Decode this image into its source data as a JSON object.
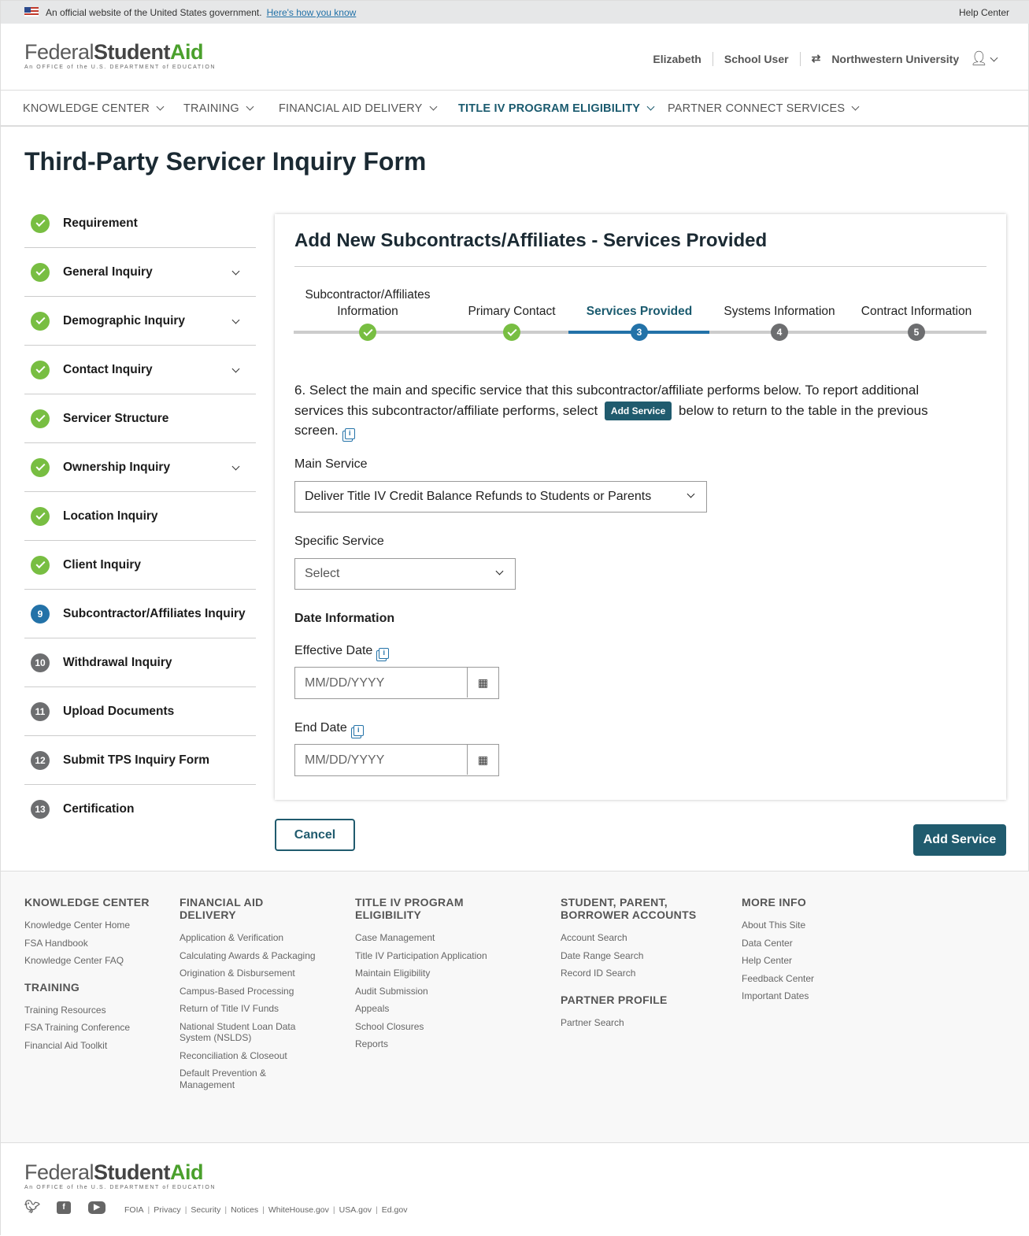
{
  "gov_banner": {
    "text": "An official website of the United States government.",
    "link": "Here's how you know",
    "help": "Help Center"
  },
  "logo": {
    "federal": "Federal",
    "student": "Student",
    "aid": "Aid",
    "sub": "An OFFICE of the U.S. DEPARTMENT of EDUCATION"
  },
  "header": {
    "user": "Elizabeth",
    "role": "School User",
    "school": "Northwestern University",
    "switch_icon": "swap-icon",
    "user_icon": "user-icon"
  },
  "nav": [
    {
      "label": "KNOWLEDGE CENTER"
    },
    {
      "label": "TRAINING"
    },
    {
      "label": "FINANCIAL AID DELIVERY"
    },
    {
      "label": "TITLE IV PROGRAM ELIGIBILITY",
      "active": true
    },
    {
      "label": "PARTNER CONNECT SERVICES"
    }
  ],
  "page_title": "Third-Party Servicer Inquiry Form",
  "sidebar": {
    "items": [
      {
        "label": "Requirement",
        "status": "done",
        "expand": false
      },
      {
        "label": "General Inquiry",
        "status": "done",
        "expand": true
      },
      {
        "label": "Demographic Inquiry",
        "status": "done",
        "expand": true
      },
      {
        "label": "Contact Inquiry",
        "status": "done",
        "expand": true
      },
      {
        "label": "Servicer Structure",
        "status": "done",
        "expand": false
      },
      {
        "label": "Ownership Inquiry",
        "status": "done",
        "expand": true
      },
      {
        "label": "Location Inquiry",
        "status": "done",
        "expand": false
      },
      {
        "label": "Client Inquiry",
        "status": "done",
        "expand": false
      },
      {
        "label": "Subcontractor/Affiliates Inquiry",
        "status": "current",
        "num": "9",
        "expand": false
      },
      {
        "label": "Withdrawal Inquiry",
        "status": "todo",
        "num": "10",
        "expand": false
      },
      {
        "label": "Upload Documents",
        "status": "todo",
        "num": "11",
        "expand": false
      },
      {
        "label": "Submit TPS Inquiry Form",
        "status": "todo",
        "num": "12",
        "expand": false
      },
      {
        "label": "Certification",
        "status": "todo",
        "num": "13",
        "expand": false
      }
    ]
  },
  "card": {
    "title": "Add New Subcontracts/Affiliates - Services Provided",
    "steps": [
      {
        "label": "Subcontractor/Affiliates Information",
        "status": "done"
      },
      {
        "label": "Primary Contact",
        "status": "done"
      },
      {
        "label": "Services Provided",
        "status": "current",
        "num": "3"
      },
      {
        "label": "Systems Information",
        "status": "todo",
        "num": "4"
      },
      {
        "label": "Contract Information",
        "status": "todo",
        "num": "5"
      }
    ],
    "question_a": "6. Select the main and specific service that this subcontractor/affiliate performs below. To report additional services this subcontractor/affiliate performs, select",
    "question_pill": "Add Service",
    "question_b": "below to return to the table in the previous screen.",
    "main_service_label": "Main Service",
    "main_service_value": "Deliver Title IV Credit Balance Refunds to Students or Parents",
    "specific_service_label": "Specific Service",
    "specific_service_value": "Select",
    "date_heading": "Date Information",
    "effective_date_label": "Effective Date",
    "effective_date_placeholder": "MM/DD/YYYY",
    "end_date_label": "End Date",
    "end_date_placeholder": "MM/DD/YYYY"
  },
  "actions": {
    "cancel": "Cancel",
    "add_service": "Add Service"
  },
  "colors": {
    "primary": "#205b6e",
    "success": "#78be42",
    "current": "#2372a8",
    "todo": "#6d6e70"
  },
  "footer": {
    "columns": [
      {
        "groups": [
          {
            "heading": "KNOWLEDGE CENTER",
            "links": [
              "Knowledge Center Home",
              "FSA Handbook",
              "Knowledge Center FAQ"
            ]
          },
          {
            "heading": "TRAINING",
            "links": [
              "Training Resources",
              "FSA Training Conference",
              "Financial Aid Toolkit"
            ]
          }
        ]
      },
      {
        "groups": [
          {
            "heading": "FINANCIAL AID DELIVERY",
            "links": [
              "Application & Verification",
              "Calculating Awards & Packaging",
              "Origination & Disbursement",
              "Campus-Based Processing",
              "Return of Title IV Funds",
              "National Student Loan Data System (NSLDS)",
              "Reconciliation & Closeout",
              "Default Prevention & Management"
            ]
          }
        ]
      },
      {
        "groups": [
          {
            "heading": "TITLE IV PROGRAM ELIGIBILITY",
            "links": [
              "Case Management",
              "Title IV Participation Application",
              "Maintain Eligibility",
              "Audit Submission",
              "Appeals",
              "School Closures",
              "Reports"
            ]
          }
        ]
      },
      {
        "groups": [
          {
            "heading": "STUDENT, PARENT, BORROWER ACCOUNTS",
            "links": [
              "Account Search",
              "Date Range Search",
              "Record ID Search"
            ]
          },
          {
            "heading": "PARTNER PROFILE",
            "links": [
              "Partner Search"
            ]
          }
        ]
      },
      {
        "groups": [
          {
            "heading": "MORE INFO",
            "links": [
              "About This Site",
              "Data Center",
              "Help Center",
              "Feedback Center",
              "Important Dates"
            ]
          }
        ]
      }
    ],
    "bottom_links": [
      "FOIA",
      "Privacy",
      "Security",
      "Notices",
      "WhiteHouse.gov",
      "USA.gov",
      "Ed.gov"
    ],
    "social": [
      "twitter-icon",
      "facebook-icon",
      "youtube-icon"
    ]
  }
}
